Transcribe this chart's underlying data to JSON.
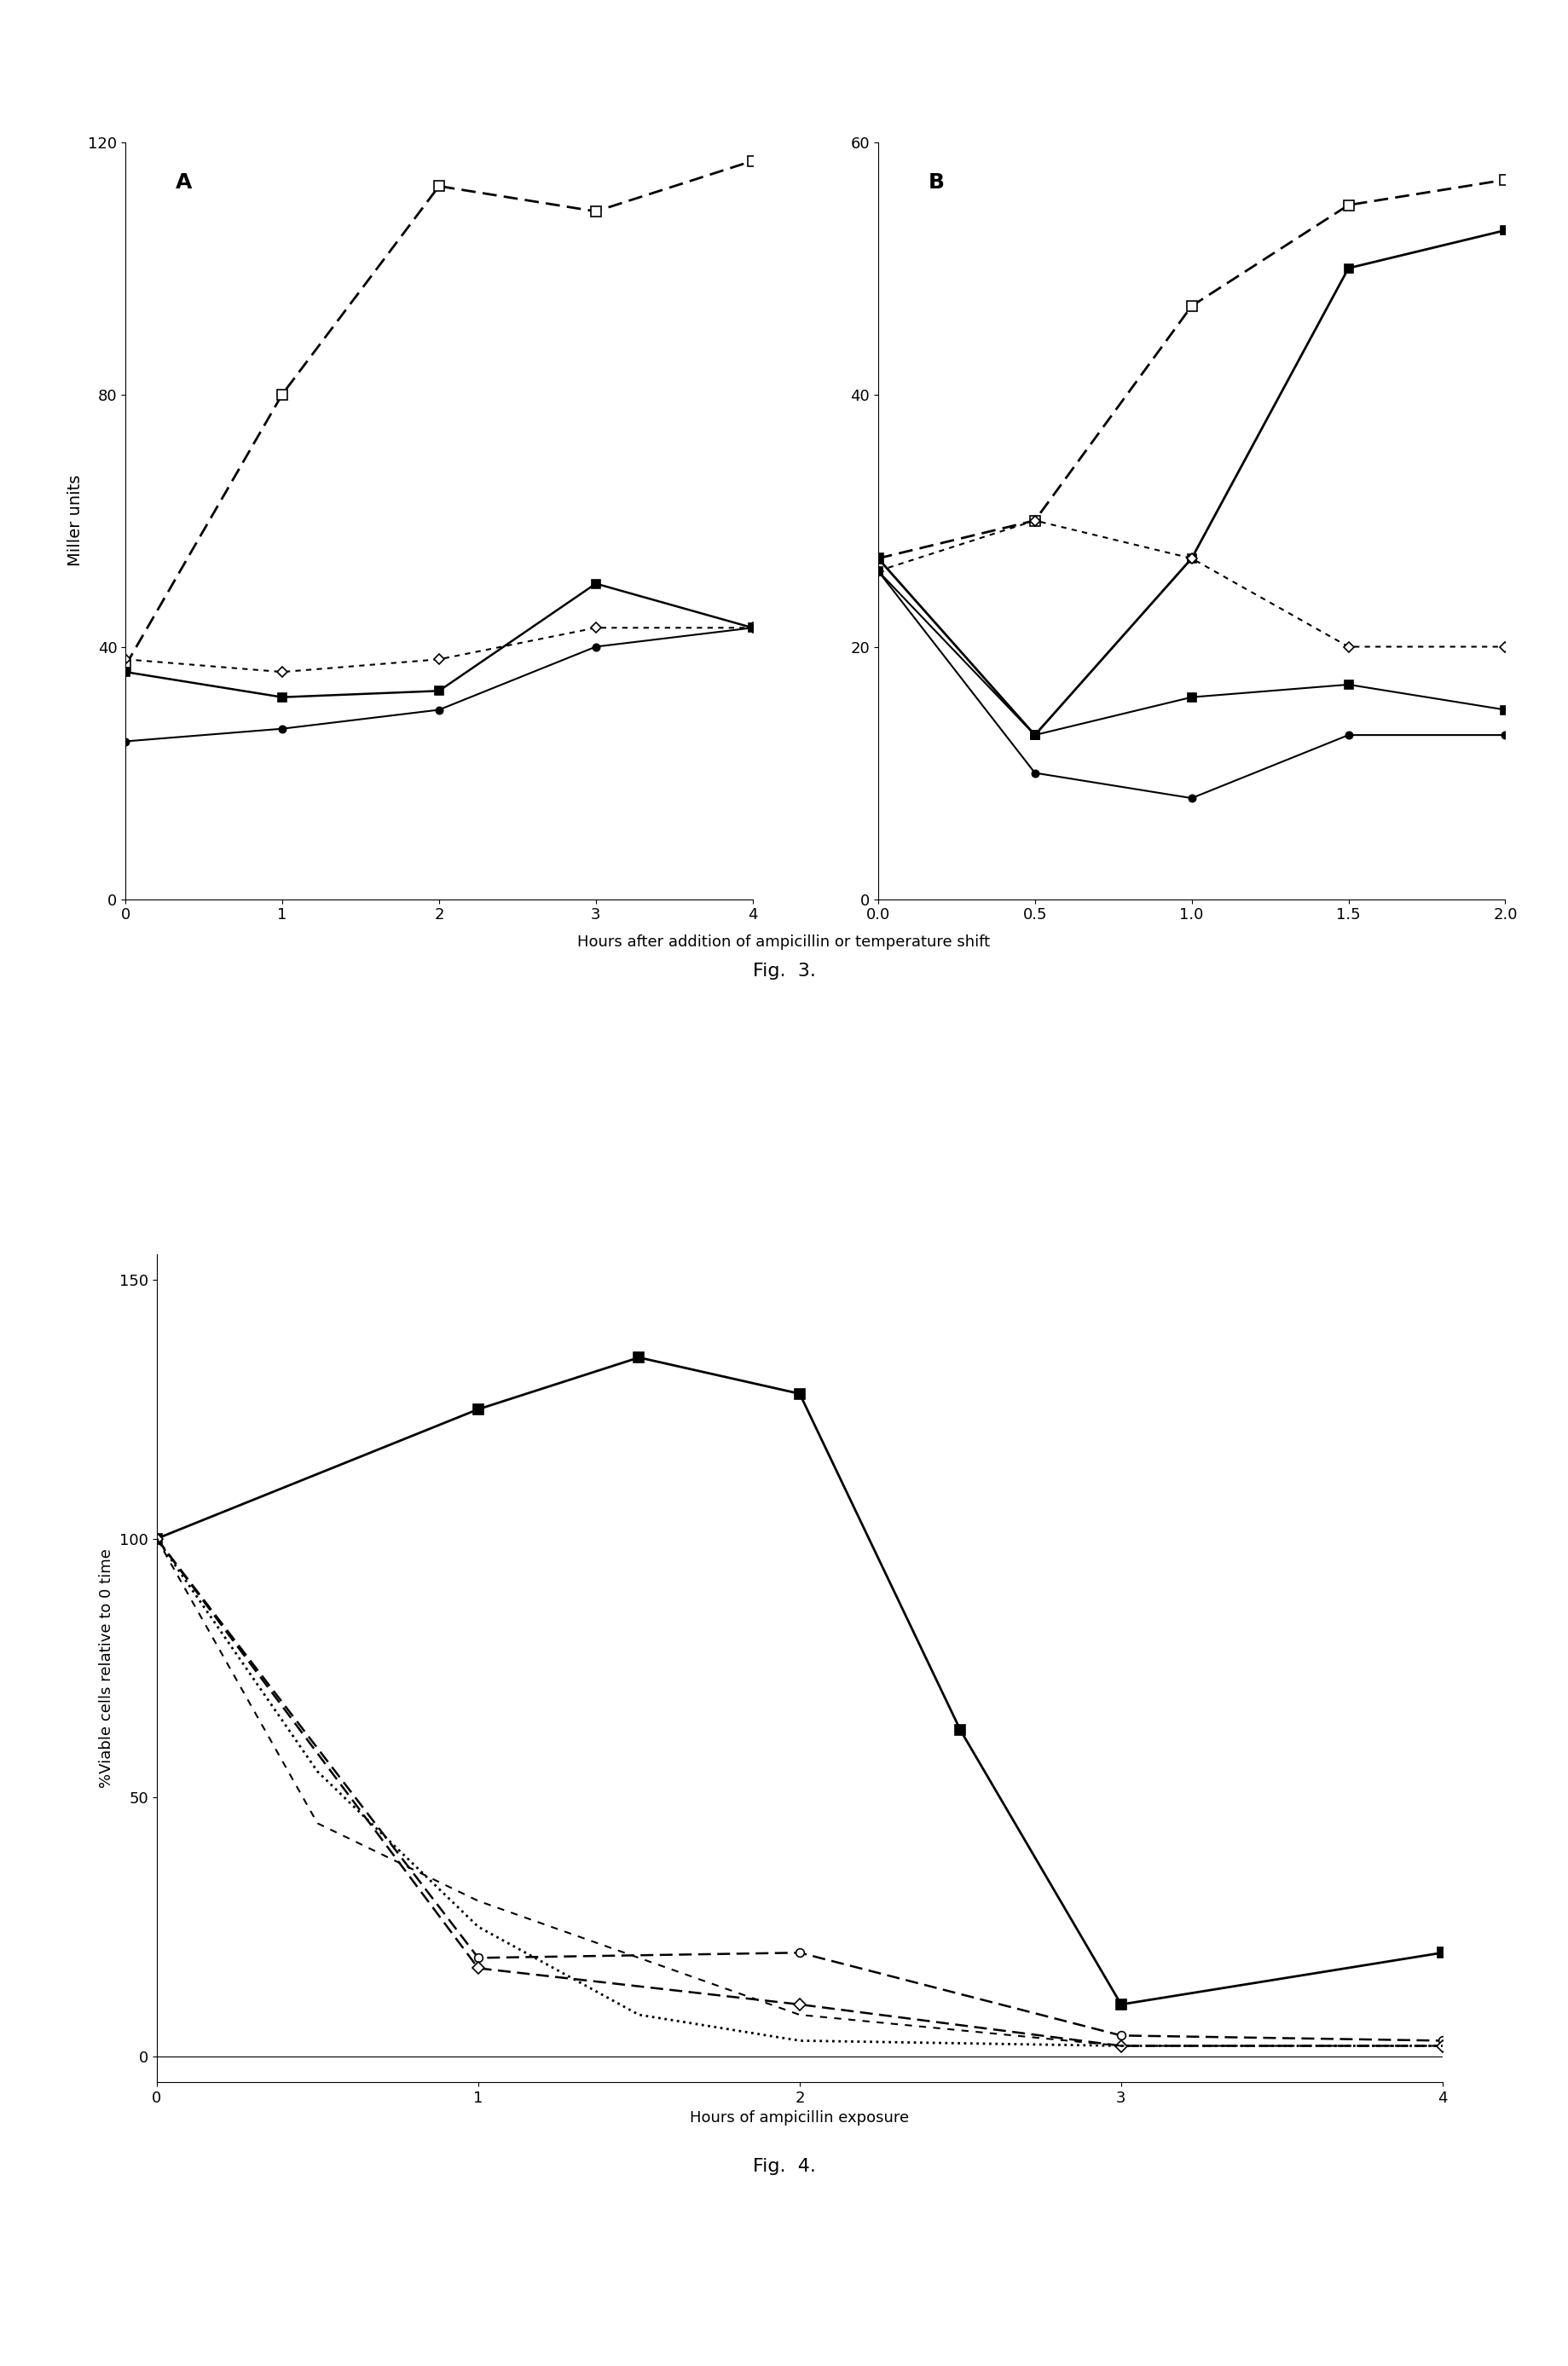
{
  "figA": {
    "title": "A",
    "xlim": [
      0,
      4
    ],
    "ylim": [
      0,
      120
    ],
    "yticks": [
      0,
      40,
      80,
      120
    ],
    "xticks": [
      0,
      1,
      2,
      3,
      4
    ],
    "series": [
      {
        "x": [
          0,
          1,
          2,
          3,
          4
        ],
        "y": [
          37,
          80,
          113,
          109,
          117
        ],
        "color": "black",
        "linestyle": "--",
        "marker": "s",
        "markerfacecolor": "white",
        "markersize": 8,
        "linewidth": 2.0,
        "dashes": [
          6,
          3
        ]
      },
      {
        "x": [
          0,
          1,
          2,
          3,
          4
        ],
        "y": [
          36,
          32,
          33,
          50,
          43
        ],
        "color": "black",
        "linestyle": "-",
        "marker": "s",
        "markerfacecolor": "black",
        "markersize": 7,
        "linewidth": 1.8,
        "dashes": null
      },
      {
        "x": [
          0,
          1,
          2,
          3,
          4
        ],
        "y": [
          38,
          36,
          38,
          43,
          43
        ],
        "color": "black",
        "linestyle": "--",
        "marker": "D",
        "markerfacecolor": "white",
        "markersize": 6,
        "linewidth": 1.5,
        "dashes": [
          3,
          3
        ]
      },
      {
        "x": [
          0,
          1,
          2,
          3,
          4
        ],
        "y": [
          25,
          27,
          30,
          40,
          43
        ],
        "color": "black",
        "linestyle": "-",
        "marker": "o",
        "markerfacecolor": "black",
        "markersize": 6,
        "linewidth": 1.5,
        "dashes": null
      }
    ]
  },
  "figB": {
    "title": "B",
    "xlim": [
      0,
      2
    ],
    "ylim": [
      0,
      60
    ],
    "yticks": [
      0,
      20,
      40,
      60
    ],
    "xticks": [
      0,
      0.5,
      1.0,
      1.5,
      2.0
    ],
    "series": [
      {
        "x": [
          0,
          0.5,
          1.0,
          1.5,
          2.0
        ],
        "y": [
          27,
          30,
          47,
          55,
          57
        ],
        "color": "black",
        "linestyle": "--",
        "marker": "s",
        "markerfacecolor": "white",
        "markersize": 8,
        "linewidth": 2.0,
        "dashes": [
          6,
          3
        ]
      },
      {
        "x": [
          0,
          0.5,
          1.0,
          1.5,
          2.0
        ],
        "y": [
          27,
          13,
          27,
          50,
          53
        ],
        "color": "black",
        "linestyle": "-",
        "marker": "s",
        "markerfacecolor": "black",
        "markersize": 7,
        "linewidth": 2.0,
        "dashes": null
      },
      {
        "x": [
          0,
          0.5,
          1.0,
          1.5,
          2.0
        ],
        "y": [
          26,
          30,
          27,
          20,
          20
        ],
        "color": "black",
        "linestyle": "--",
        "marker": "D",
        "markerfacecolor": "white",
        "markersize": 6,
        "linewidth": 1.5,
        "dashes": [
          3,
          3
        ]
      },
      {
        "x": [
          0,
          0.5,
          1.0,
          1.5,
          2.0
        ],
        "y": [
          26,
          13,
          16,
          17,
          15
        ],
        "color": "black",
        "linestyle": "-",
        "marker": "s",
        "markerfacecolor": "black",
        "markersize": 7,
        "linewidth": 1.5,
        "dashes": null
      },
      {
        "x": [
          0,
          0.5,
          1.0,
          1.5,
          2.0
        ],
        "y": [
          26,
          10,
          8,
          13,
          13
        ],
        "color": "black",
        "linestyle": "-",
        "marker": "o",
        "markerfacecolor": "black",
        "markersize": 6,
        "linewidth": 1.5,
        "dashes": null
      }
    ]
  },
  "figC": {
    "xlim": [
      0,
      4
    ],
    "ylim": [
      -5,
      155
    ],
    "yticks": [
      0,
      50,
      100,
      150
    ],
    "xticks": [
      0,
      1,
      2,
      3,
      4
    ],
    "series": [
      {
        "x": [
          0,
          1,
          1.5,
          2.0,
          2.5,
          3,
          4
        ],
        "y": [
          100,
          125,
          135,
          128,
          63,
          10,
          20
        ],
        "color": "black",
        "linestyle": "-",
        "marker": "s",
        "markerfacecolor": "black",
        "markersize": 8,
        "linewidth": 2.0,
        "dashes": null
      },
      {
        "x": [
          0,
          1,
          2,
          3,
          4
        ],
        "y": [
          100,
          19,
          20,
          4,
          3
        ],
        "color": "black",
        "linestyle": "--",
        "marker": "o",
        "markerfacecolor": "white",
        "markersize": 7,
        "linewidth": 1.8,
        "dashes": [
          6,
          3
        ]
      },
      {
        "x": [
          0,
          1,
          2,
          3,
          4
        ],
        "y": [
          100,
          17,
          10,
          2,
          2
        ],
        "color": "black",
        "linestyle": "--",
        "marker": "D",
        "markerfacecolor": "white",
        "markersize": 7,
        "linewidth": 1.8,
        "dashes": [
          6,
          3
        ]
      },
      {
        "x": [
          0,
          0.5,
          1,
          1.5,
          2,
          3,
          4
        ],
        "y": [
          100,
          55,
          25,
          8,
          3,
          2,
          2
        ],
        "color": "black",
        "linestyle": ":",
        "marker": null,
        "markerfacecolor": "black",
        "markersize": 0,
        "linewidth": 2.0,
        "dashes": null
      },
      {
        "x": [
          0,
          0.5,
          1,
          2,
          3,
          4
        ],
        "y": [
          100,
          45,
          30,
          8,
          2,
          2
        ],
        "color": "black",
        "linestyle": "--",
        "marker": null,
        "markerfacecolor": "white",
        "markersize": 0,
        "linewidth": 1.5,
        "dashes": [
          4,
          4
        ]
      }
    ]
  },
  "xlabel_top": "Hours after addition of ampicillin or temperature shift",
  "ylabel_top": "Miller units",
  "xlabel_bottom": "Hours of ampicillin exposure",
  "ylabel_bottom": "%Viable cells relative to 0 time",
  "fig3_label": "Fig.  3.",
  "fig4_label": "Fig.  4."
}
